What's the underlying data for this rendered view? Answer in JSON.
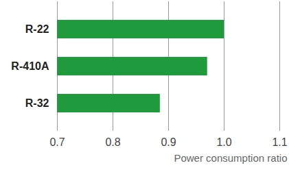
{
  "chart_data": {
    "type": "bar",
    "orientation": "horizontal",
    "categories": [
      "R-22",
      "R-410A",
      "R-32"
    ],
    "values": [
      1.0,
      0.97,
      0.885
    ],
    "color": "#1f9a3c",
    "xlabel": "Power consumption ratio",
    "xlim": [
      0.7,
      1.1
    ],
    "xticks": [
      0.7,
      0.8,
      0.9,
      {
        "value": 1,
        "label": "1.0"
      },
      1.1
    ],
    "grid": true
  }
}
